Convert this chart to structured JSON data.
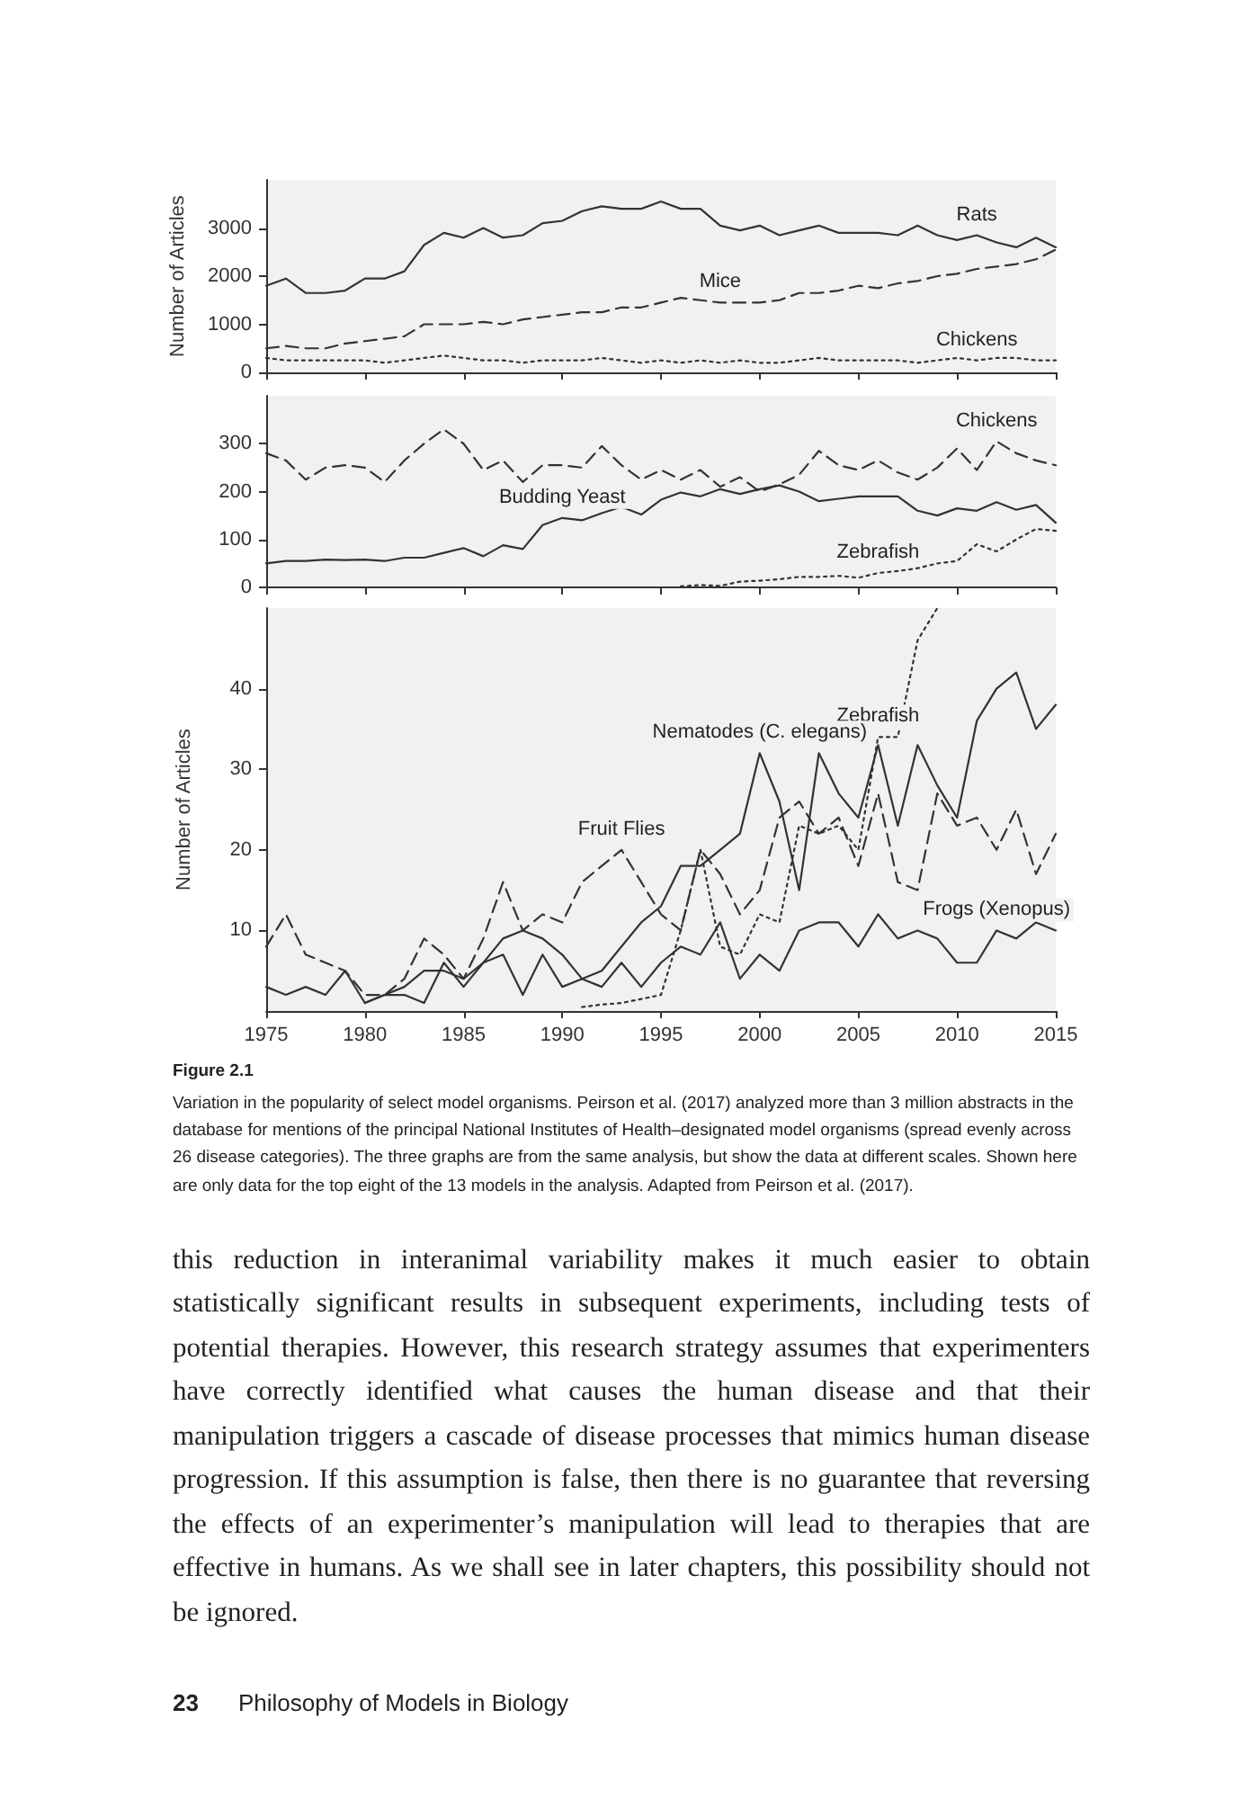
{
  "chart_data": [
    {
      "type": "line",
      "ylabel": "Number of Articles",
      "x": [
        1975,
        1976,
        1977,
        1978,
        1979,
        1980,
        1981,
        1982,
        1983,
        1984,
        1985,
        1986,
        1987,
        1988,
        1989,
        1990,
        1991,
        1992,
        1993,
        1994,
        1995,
        1996,
        1997,
        1998,
        1999,
        2000,
        2001,
        2002,
        2003,
        2004,
        2005,
        2006,
        2007,
        2008,
        2009,
        2010,
        2011,
        2012,
        2013,
        2014,
        2015
      ],
      "xlim": [
        1975,
        2015
      ],
      "xticks": [
        1975,
        1980,
        1985,
        1990,
        1995,
        2000,
        2005,
        2010,
        2015
      ],
      "ylim": [
        0,
        4000
      ],
      "yticks": [
        0,
        1000,
        2000,
        3000
      ],
      "tick_labels": "y",
      "grid": false,
      "marker": "none",
      "series": [
        {
          "color": "#333333",
          "line_style": "solid",
          "values": [
            1800,
            1950,
            1650,
            1650,
            1700,
            1950,
            1950,
            2100,
            2650,
            2900,
            2800,
            3000,
            2800,
            2850,
            3100,
            3150,
            3350,
            3450,
            3400,
            3400,
            3550,
            3400,
            3400,
            3050,
            2950,
            3050,
            2850,
            2950,
            3050,
            2900,
            2900,
            2900,
            2850,
            3050,
            2850,
            2750,
            2850,
            2700,
            2600,
            2800,
            2600
          ]
        },
        {
          "color": "#333333",
          "line_style": "dashed",
          "values": [
            500,
            550,
            500,
            500,
            600,
            650,
            700,
            750,
            1000,
            1000,
            1000,
            1050,
            1000,
            1100,
            1150,
            1200,
            1250,
            1250,
            1350,
            1350,
            1450,
            1550,
            1500,
            1450,
            1450,
            1450,
            1500,
            1650,
            1650,
            1700,
            1800,
            1750,
            1850,
            1900,
            2000,
            2050,
            2150,
            2200,
            2250,
            2350,
            2550
          ]
        },
        {
          "color": "#333333",
          "line_style": "dotted",
          "values": [
            300,
            250,
            250,
            250,
            250,
            250,
            200,
            250,
            300,
            350,
            300,
            250,
            250,
            200,
            250,
            250,
            250,
            300,
            250,
            200,
            250,
            200,
            250,
            200,
            250,
            200,
            200,
            250,
            300,
            250,
            250,
            250,
            250,
            200,
            250,
            300,
            250,
            300,
            300,
            250,
            250
          ]
        }
      ],
      "annotations": [
        {
          "text": "Rats",
          "x": 2011,
          "y": 2850
        },
        {
          "text": "Mice",
          "x": 1998,
          "y": 1450
        },
        {
          "text": "Chickens",
          "x": 2011,
          "y": 250
        }
      ]
    },
    {
      "type": "line",
      "x": [
        1975,
        1976,
        1977,
        1978,
        1979,
        1980,
        1981,
        1982,
        1983,
        1984,
        1985,
        1986,
        1987,
        1988,
        1989,
        1990,
        1991,
        1992,
        1993,
        1994,
        1995,
        1996,
        1997,
        1998,
        1999,
        2000,
        2001,
        2002,
        2003,
        2004,
        2005,
        2006,
        2007,
        2008,
        2009,
        2010,
        2011,
        2012,
        2013,
        2014,
        2015
      ],
      "xlim": [
        1975,
        2015
      ],
      "xticks": [
        1975,
        1980,
        1985,
        1990,
        1995,
        2000,
        2005,
        2010,
        2015
      ],
      "ylim": [
        0,
        400
      ],
      "yticks": [
        0,
        100,
        200,
        300
      ],
      "tick_labels": "y",
      "grid": false,
      "marker": "none",
      "series": [
        {
          "color": "#333333",
          "line_style": "dashed",
          "values": [
            280,
            265,
            225,
            250,
            255,
            250,
            220,
            265,
            300,
            330,
            300,
            245,
            265,
            220,
            255,
            255,
            250,
            295,
            255,
            225,
            245,
            225,
            245,
            210,
            230,
            200,
            215,
            235,
            285,
            255,
            245,
            265,
            240,
            225,
            250,
            290,
            245,
            305,
            280,
            265,
            255
          ]
        },
        {
          "color": "#333333",
          "line_style": "solid",
          "values": [
            50,
            55,
            55,
            58,
            57,
            58,
            55,
            62,
            62,
            72,
            82,
            65,
            88,
            80,
            130,
            145,
            140,
            155,
            168,
            152,
            183,
            198,
            190,
            205,
            195,
            205,
            213,
            200,
            180,
            185,
            190,
            190,
            190,
            160,
            150,
            165,
            160,
            178,
            162,
            172,
            135
          ]
        },
        {
          "color": "#333333",
          "line_style": "dotted",
          "values": [
            null,
            null,
            null,
            null,
            null,
            null,
            null,
            null,
            null,
            null,
            null,
            null,
            null,
            null,
            null,
            null,
            null,
            null,
            null,
            null,
            null,
            2,
            5,
            3,
            12,
            14,
            17,
            22,
            22,
            24,
            20,
            30,
            34,
            40,
            50,
            55,
            90,
            75,
            100,
            122,
            118
          ]
        }
      ],
      "annotations": [
        {
          "text": "Chickens",
          "x": 2012,
          "y": 305
        },
        {
          "text": "Budding Yeast",
          "x": 1990,
          "y": 145
        },
        {
          "text": "Zebrafish",
          "x": 2006,
          "y": 30
        }
      ]
    },
    {
      "type": "line",
      "ylabel": "Number of Articles",
      "x": [
        1975,
        1976,
        1977,
        1978,
        1979,
        1980,
        1981,
        1982,
        1983,
        1984,
        1985,
        1986,
        1987,
        1988,
        1989,
        1990,
        1991,
        1992,
        1993,
        1994,
        1995,
        1996,
        1997,
        1998,
        1999,
        2000,
        2001,
        2002,
        2003,
        2004,
        2005,
        2006,
        2007,
        2008,
        2009,
        2010,
        2011,
        2012,
        2013,
        2014,
        2015
      ],
      "xlim": [
        1975,
        2015
      ],
      "xticks": [
        1975,
        1980,
        1985,
        1990,
        1995,
        2000,
        2005,
        2010,
        2015
      ],
      "ylim": [
        0,
        50
      ],
      "yticks": [
        10,
        20,
        30,
        40
      ],
      "grid": false,
      "marker": "none",
      "series": [
        {
          "color": "#333333",
          "line_style": "dotted",
          "values": [
            null,
            null,
            null,
            null,
            null,
            null,
            null,
            null,
            null,
            null,
            null,
            null,
            null,
            null,
            null,
            null,
            0.5,
            0.8,
            1,
            1.5,
            2,
            10,
            20,
            8,
            7,
            12,
            11,
            23,
            22,
            23,
            20,
            34,
            34,
            46,
            50,
            null,
            null,
            null,
            null,
            null,
            null
          ]
        },
        {
          "color": "#333333",
          "line_style": "solid",
          "values": [
            null,
            null,
            null,
            null,
            null,
            1,
            2,
            3,
            5,
            5,
            4,
            6,
            9,
            10,
            9,
            7,
            4,
            5,
            8,
            11,
            13,
            18,
            18,
            20,
            22,
            32,
            26,
            15,
            32,
            27,
            24,
            33,
            23,
            33,
            28,
            24,
            36,
            40,
            42,
            35,
            38
          ]
        },
        {
          "color": "#333333",
          "line_style": "dashed",
          "values": [
            8,
            12,
            7,
            6,
            5,
            2,
            2,
            4,
            9,
            7,
            4,
            9,
            16,
            10,
            12,
            11,
            16,
            18,
            20,
            16,
            12,
            10,
            20,
            17,
            12,
            15,
            24,
            26,
            22,
            24,
            18,
            27,
            16,
            15,
            27,
            23,
            24,
            20,
            25,
            17,
            22
          ]
        },
        {
          "color": "#333333",
          "line_style": "solid",
          "values": [
            3,
            2,
            3,
            2,
            5,
            1,
            2,
            2,
            1,
            6,
            3,
            6,
            7,
            2,
            7,
            3,
            4,
            3,
            6,
            3,
            6,
            8,
            7,
            11,
            4,
            7,
            5,
            10,
            11,
            11,
            8,
            12,
            9,
            10,
            9,
            6,
            6,
            10,
            9,
            11,
            10
          ]
        }
      ],
      "annotations": [
        {
          "text": "Zebrafish",
          "x": 2006,
          "y": 34
        },
        {
          "text": "Nematodes (C. elegans)",
          "x": 2000,
          "y": 32
        },
        {
          "text": "Fruit Flies",
          "x": 1993,
          "y": 20
        },
        {
          "text": "Frogs (Xenopus)",
          "x": 2012,
          "y": 10
        },
        "Figure 2.1",
        "Variation in the popularity of select model organisms. Peirson et al. (2017) analyzed more than 3 million abstracts in the database for mentions of the principal National Institutes of Health–designated model organisms (spread evenly across 26 disease categories). The three graphs are from the same analysis, but show the data at different scales. Shown here are only data for the top eight of the 13 models in the analysis. Adapted from Peirson et al. (2017).",
        "this reduction in interanimal variability makes it much easier to obtain statistically significant results in subsequent experiments, including tests of potential therapies. However, this research strategy assumes that experimenters have correctly identified what causes the human disease and that their manipulation triggers a cascade of disease processes that mimics human disease progression. If this assumption is false, then there is no guarantee that reversing the effects of an experimenter’s manipulation will lead to therapies that are effective in humans. As we shall see in later chapters, this possibility should not be ignored.",
        "23",
        "Philosophy of Models in Biology"
      ]
    }
  ]
}
